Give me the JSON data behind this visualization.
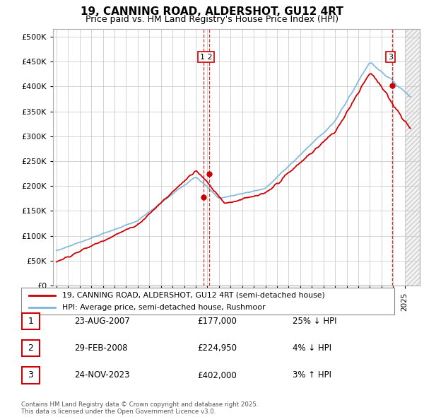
{
  "title": "19, CANNING ROAD, ALDERSHOT, GU12 4RT",
  "subtitle": "Price paid vs. HM Land Registry's House Price Index (HPI)",
  "ylabel_ticks": [
    "£0",
    "£50K",
    "£100K",
    "£150K",
    "£200K",
    "£250K",
    "£300K",
    "£350K",
    "£400K",
    "£450K",
    "£500K"
  ],
  "ytick_values": [
    0,
    50000,
    100000,
    150000,
    200000,
    250000,
    300000,
    350000,
    400000,
    450000,
    500000
  ],
  "ylim": [
    0,
    515000
  ],
  "xlim_start": 1994.7,
  "xlim_end": 2026.3,
  "hpi_color": "#7ab4d8",
  "price_color": "#cc0000",
  "transactions": [
    {
      "date_num": 2007.64,
      "price": 177000,
      "label": "1"
    },
    {
      "date_num": 2008.16,
      "price": 224950,
      "label": "2"
    },
    {
      "date_num": 2023.9,
      "price": 402000,
      "label": "3"
    }
  ],
  "legend_entries": [
    {
      "label": "19, CANNING ROAD, ALDERSHOT, GU12 4RT (semi-detached house)",
      "color": "#cc0000"
    },
    {
      "label": "HPI: Average price, semi-detached house, Rushmoor",
      "color": "#7ab4d8"
    }
  ],
  "table_rows": [
    {
      "num": "1",
      "date": "23-AUG-2007",
      "price": "£177,000",
      "hpi": "25% ↓ HPI"
    },
    {
      "num": "2",
      "date": "29-FEB-2008",
      "price": "£224,950",
      "hpi": "4% ↓ HPI"
    },
    {
      "num": "3",
      "date": "24-NOV-2023",
      "price": "£402,000",
      "hpi": "3% ↑ HPI"
    }
  ],
  "footnote": "Contains HM Land Registry data © Crown copyright and database right 2025.\nThis data is licensed under the Open Government Licence v3.0.",
  "background_color": "#ffffff",
  "grid_color": "#cccccc",
  "future_start": 2025.0
}
